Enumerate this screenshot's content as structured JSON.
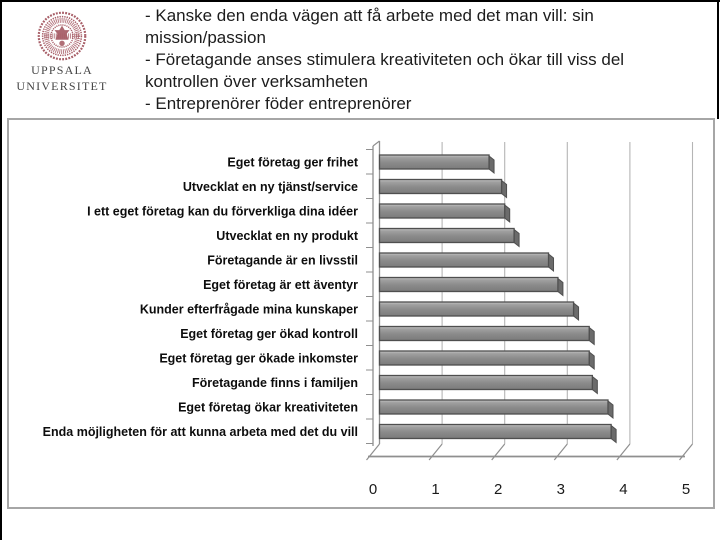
{
  "logo": {
    "line1": "UPPSALA",
    "line2": "UNIVERSITET",
    "seal_color": "#a85f68"
  },
  "header": {
    "bullets": [
      "- Kanske den enda vägen att få arbete med det man vill: sin mission/passion",
      "- Företagande anses stimulera kreativiteten och ökar till viss del kontrollen över verksamheten",
      "- Entreprenörer föder entreprenörer"
    ],
    "text_color": "#1c1c1c"
  },
  "chart_data": {
    "type": "bar",
    "orientation": "horizontal",
    "style": "3d-gray",
    "title": "",
    "xlabel": "",
    "ylabel": "",
    "categories": [
      "Eget företag ger frihet",
      "Utvecklat en ny tjänst/service",
      "I ett eget företag kan du förverkliga dina idéer",
      "Utvecklat en ny produkt",
      "Företagande är en livsstil",
      "Eget företag är ett äventyr",
      "Kunder efterfrågade mina kunskaper",
      "Eget företag ger ökad kontroll",
      "Eget företag ger ökade inkomster",
      "Företagande finns i familjen",
      "Eget företag ökar kreativiteten",
      "Enda möjligheten för att kunna arbeta med det du vill"
    ],
    "values": [
      1.75,
      1.95,
      2.0,
      2.15,
      2.7,
      2.85,
      3.1,
      3.35,
      3.35,
      3.4,
      3.65,
      3.7
    ],
    "xlim": [
      0,
      5
    ],
    "xticks": [
      "0",
      "1",
      "2",
      "3",
      "4",
      "5"
    ],
    "grid": true,
    "legend_position": "none",
    "bar_color": "#8a8a8a",
    "bar_border_color": "#4f4f4f",
    "gridline_color": "#b5b5b5",
    "axis_color": "#8f8f8f"
  }
}
